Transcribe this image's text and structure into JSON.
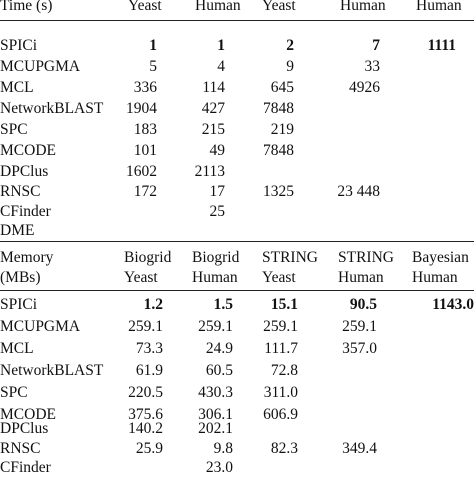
{
  "time_section": {
    "header": [
      "Time (s)",
      "Yeast",
      "Human",
      "Yeast",
      "Human",
      "Human"
    ],
    "rows": [
      {
        "method": "SPICi",
        "bold": true,
        "values": [
          "1",
          "1",
          "2",
          "7",
          "1111"
        ]
      },
      {
        "method": "MCUPGMA",
        "values": [
          "5",
          "4",
          "9",
          "33",
          ""
        ]
      },
      {
        "method": "MCL",
        "values": [
          "336",
          "114",
          "645",
          "4926",
          ""
        ]
      },
      {
        "method": "NetworkBLAST",
        "values": [
          "1904",
          "427",
          "7848",
          "",
          ""
        ]
      },
      {
        "method": "SPC",
        "values": [
          "183",
          "215",
          "219",
          "",
          ""
        ]
      },
      {
        "method": "MCODE",
        "values": [
          "101",
          "49",
          "7848",
          "",
          ""
        ]
      },
      {
        "method": "DPClus",
        "values": [
          "1602",
          "2113",
          "",
          "",
          ""
        ]
      },
      {
        "method": "RNSC",
        "values": [
          "172",
          "17",
          "1325",
          "23 448",
          ""
        ]
      },
      {
        "method": "CFinder",
        "values": [
          "",
          "25",
          "",
          "",
          ""
        ]
      },
      {
        "method": "DME",
        "values": [
          "",
          "",
          "",
          "",
          ""
        ]
      }
    ]
  },
  "memory_section": {
    "header_line1": [
      "Memory",
      "Biogrid",
      "Biogrid",
      "STRING",
      "STRING",
      "Bayesian"
    ],
    "header_line2": [
      "(MBs)",
      "Yeast",
      "Human",
      "Yeast",
      "Human",
      "Human"
    ],
    "rows": [
      {
        "method": "SPICi",
        "bold": true,
        "values": [
          "1.2",
          "1.5",
          "15.1",
          "90.5",
          "1143.0"
        ]
      },
      {
        "method": "MCUPGMA",
        "values": [
          "259.1",
          "259.1",
          "259.1",
          "259.1",
          ""
        ]
      },
      {
        "method": "MCL",
        "values": [
          "73.3",
          "24.9",
          "111.7",
          "357.0",
          ""
        ]
      },
      {
        "method": "NetworkBLAST",
        "values": [
          "61.9",
          "60.5",
          "72.8",
          "",
          ""
        ]
      },
      {
        "method": "SPC",
        "values": [
          "220.5",
          "430.3",
          "311.0",
          "",
          ""
        ]
      },
      {
        "method": "MCODE",
        "values": [
          "375.6",
          "306.1",
          "606.9",
          "",
          ""
        ]
      },
      {
        "method": "DPClus",
        "values": [
          "140.2",
          "202.1",
          "",
          "",
          ""
        ]
      },
      {
        "method": "RNSC",
        "values": [
          "25.9",
          "9.8",
          "82.3",
          "349.4",
          ""
        ]
      },
      {
        "method": "CFinder",
        "values": [
          "",
          "23.0",
          "",
          "",
          ""
        ]
      }
    ]
  }
}
